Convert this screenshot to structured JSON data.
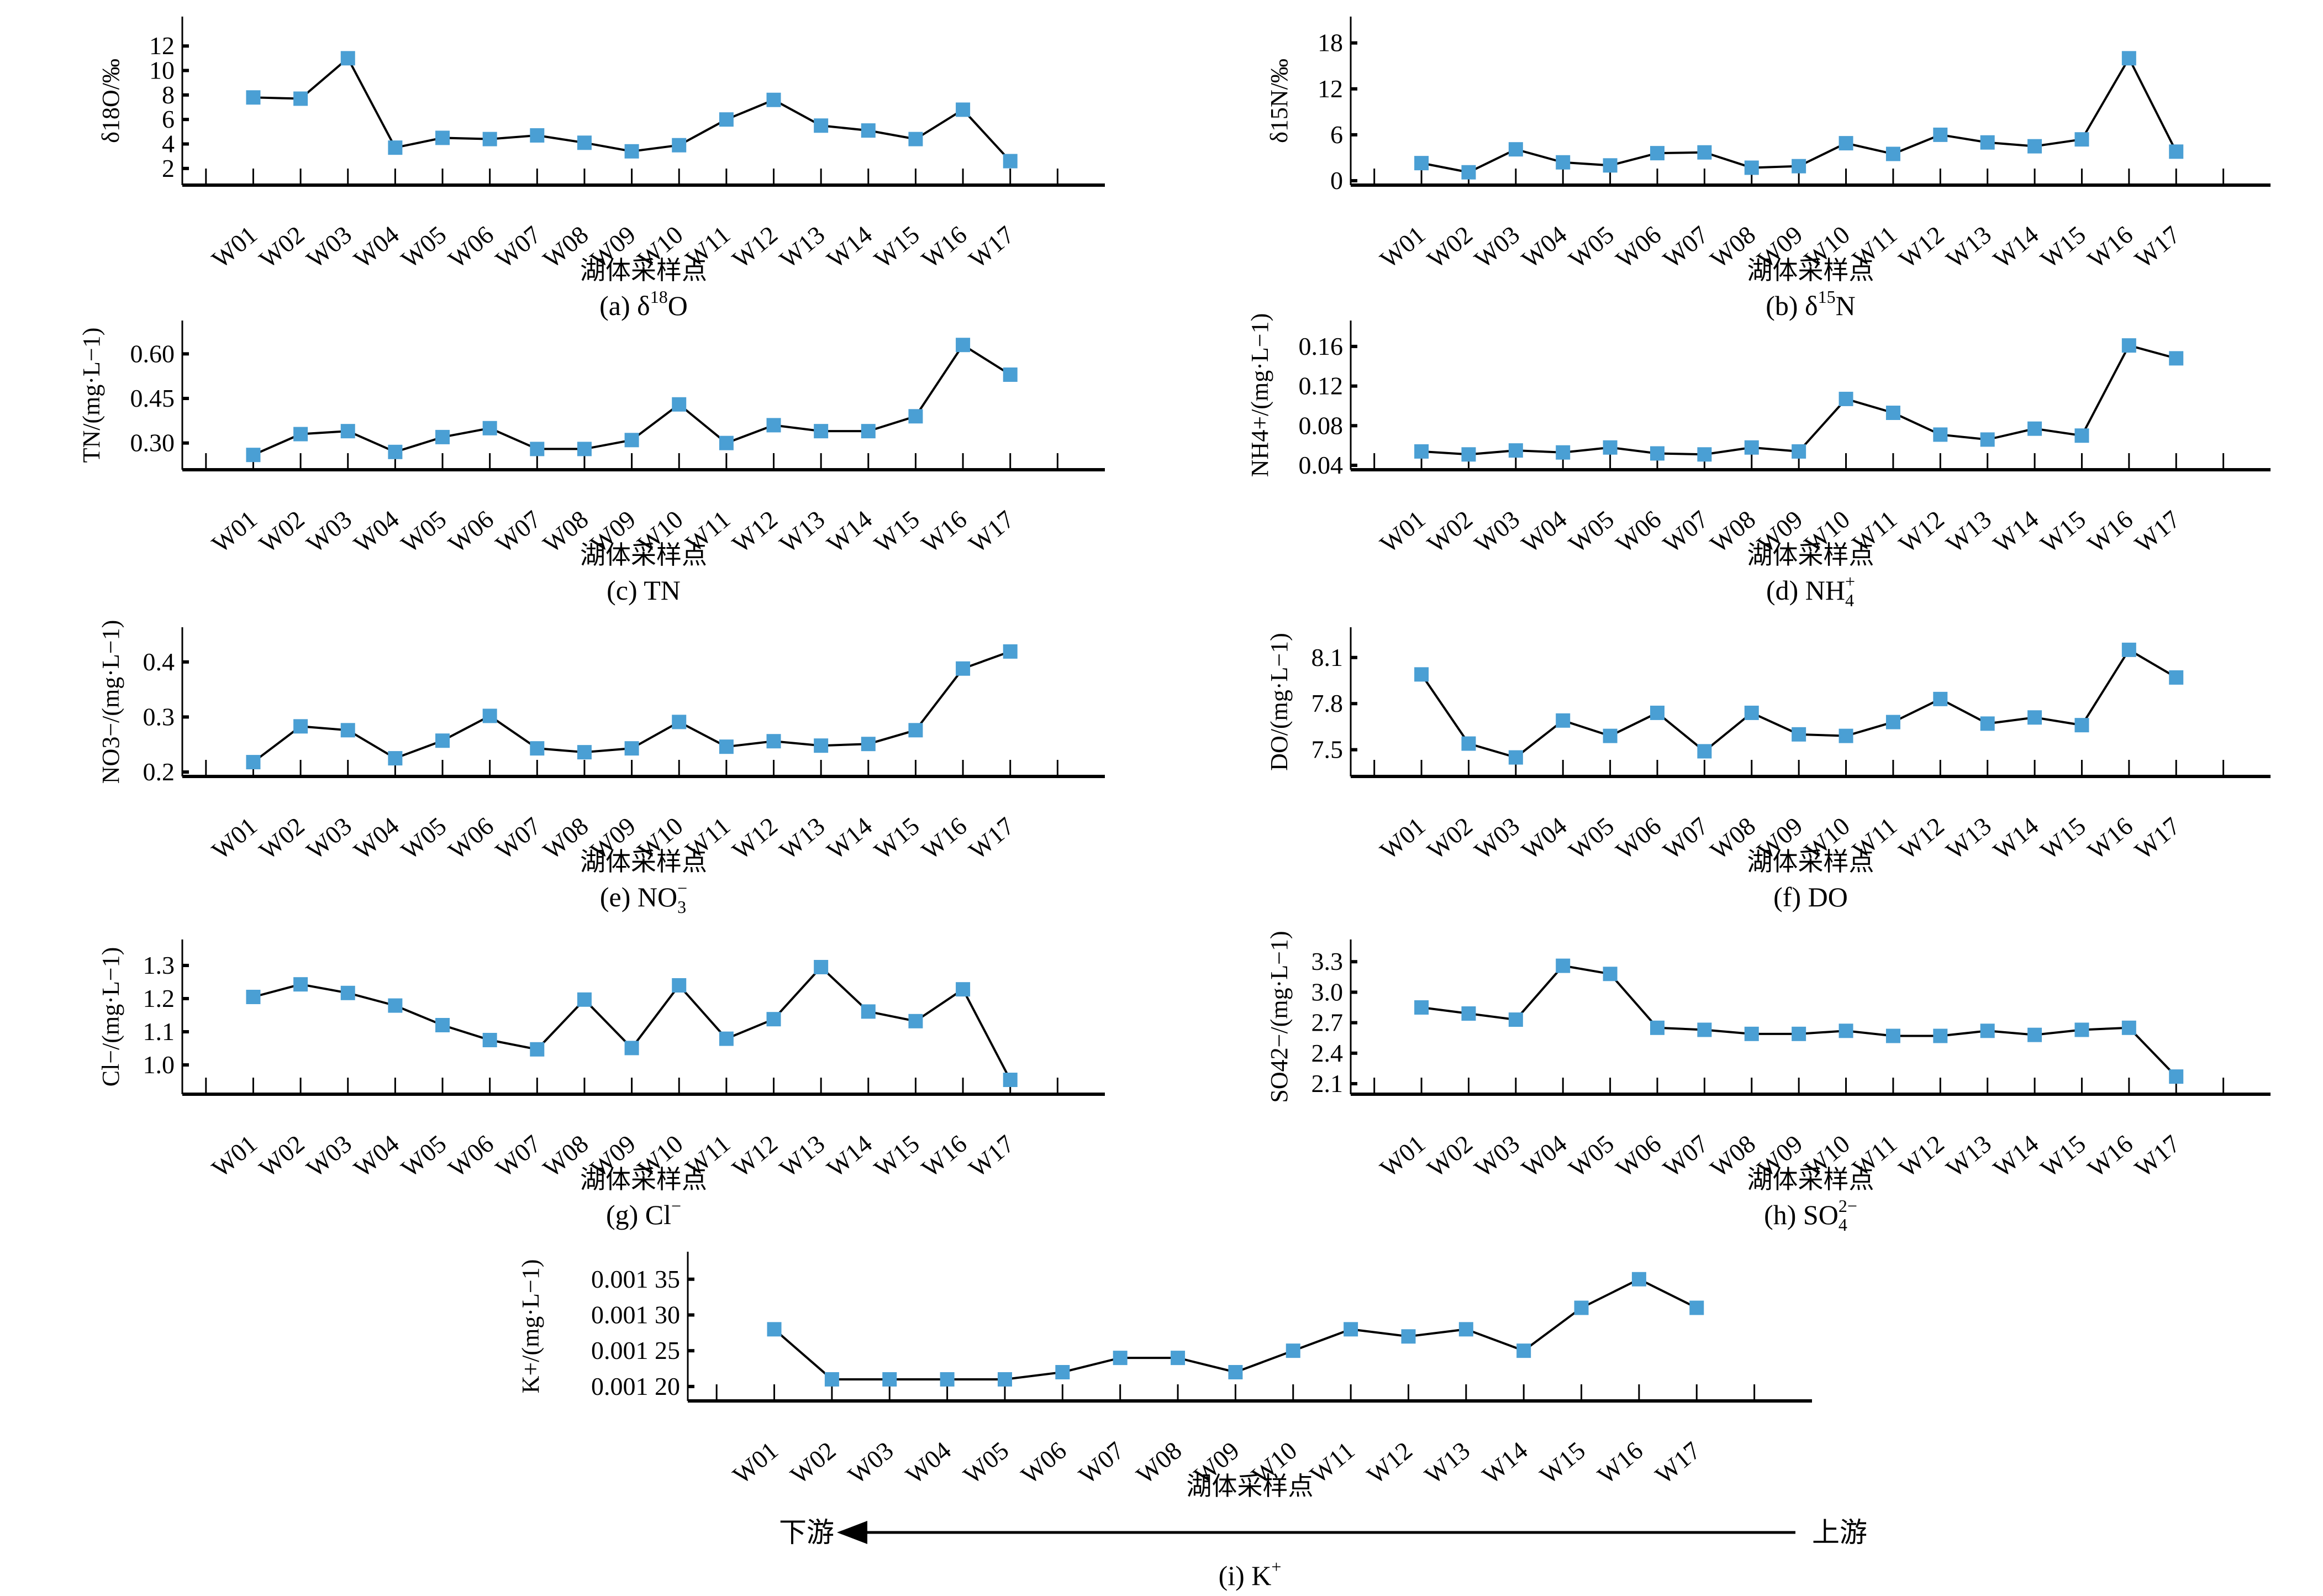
{
  "figure": {
    "xlabel": "湖体采样点",
    "flow": {
      "downstream": "下游",
      "upstream": "上游"
    },
    "marker_color": "#4a9fd4",
    "line_color": "#000000"
  },
  "chart_data": [
    {
      "id": "a",
      "type": "line",
      "caption": "(a) δ18O",
      "caption_parts": {
        "prefix": "(a) δ",
        "sup": "18",
        "suffix": "O"
      },
      "ylabel": "δ18O/‰",
      "xlabel": "湖体采样点",
      "categories": [
        "W01",
        "W02",
        "W03",
        "W04",
        "W05",
        "W06",
        "W07",
        "W08",
        "W09",
        "W10",
        "W11",
        "W12",
        "W13",
        "W14",
        "W15",
        "W16",
        "W17"
      ],
      "values": [
        7.8,
        7.7,
        11.0,
        3.7,
        4.5,
        4.4,
        4.7,
        4.1,
        3.4,
        3.9,
        6.0,
        7.6,
        5.5,
        5.1,
        4.4,
        6.8,
        2.6
      ],
      "yticks": [
        2,
        4,
        6,
        8,
        10,
        12
      ],
      "ytick_labels": [
        "2",
        "4",
        "6",
        "8",
        "10",
        "12"
      ],
      "ylim": [
        1.0,
        13.5
      ]
    },
    {
      "id": "b",
      "type": "line",
      "caption": "(b) δ15N",
      "caption_parts": {
        "prefix": "(b) δ",
        "sup": "15",
        "suffix": "N"
      },
      "ylabel": "δ15N/‰",
      "xlabel": "湖体采样点",
      "categories": [
        "W01",
        "W02",
        "W03",
        "W04",
        "W05",
        "W06",
        "W07",
        "W08",
        "W09",
        "W10",
        "W11",
        "W12",
        "W13",
        "W14",
        "W15",
        "W16",
        "W17"
      ],
      "values": [
        2.3,
        1.1,
        4.1,
        2.4,
        2.0,
        3.6,
        3.7,
        1.7,
        1.9,
        4.9,
        3.5,
        6.0,
        5.0,
        4.5,
        5.4,
        16.0,
        3.8
      ],
      "yticks": [
        0,
        6,
        12,
        18
      ],
      "ytick_labels": [
        "0",
        "6",
        "12",
        "18"
      ],
      "ylim": [
        0,
        20
      ]
    },
    {
      "id": "c",
      "type": "line",
      "caption": "(c) TN",
      "caption_parts": {
        "prefix": "(c) TN",
        "sup": "",
        "suffix": ""
      },
      "ylabel": "TN/(mg·L−1)",
      "xlabel": "湖体采样点",
      "categories": [
        "W01",
        "W02",
        "W03",
        "W04",
        "W05",
        "W06",
        "W07",
        "W08",
        "W09",
        "W10",
        "W11",
        "W12",
        "W13",
        "W14",
        "W15",
        "W16",
        "W17"
      ],
      "values": [
        0.26,
        0.33,
        0.34,
        0.27,
        0.32,
        0.35,
        0.28,
        0.28,
        0.31,
        0.43,
        0.3,
        0.36,
        0.34,
        0.34,
        0.39,
        0.63,
        0.53
      ],
      "yticks": [
        0.3,
        0.45,
        0.6
      ],
      "ytick_labels": [
        "0.30",
        "0.45",
        "0.60"
      ],
      "ylim": [
        0.225,
        0.675
      ]
    },
    {
      "id": "d",
      "type": "line",
      "caption": "(d) NH4+",
      "caption_parts": {
        "prefix": "(d) NH",
        "sup": "+",
        "sub": "4",
        "suffix": ""
      },
      "ylabel": "NH4+/(mg·L−1)",
      "xlabel": "湖体采样点",
      "categories": [
        "W01",
        "W02",
        "W03",
        "W04",
        "W05",
        "W06",
        "W07",
        "W08",
        "W09",
        "W10",
        "W11",
        "W12",
        "W13",
        "W14",
        "W15",
        "W16",
        "W17"
      ],
      "values": [
        0.054,
        0.051,
        0.055,
        0.053,
        0.058,
        0.052,
        0.051,
        0.058,
        0.054,
        0.107,
        0.093,
        0.071,
        0.066,
        0.077,
        0.07,
        0.161,
        0.148
      ],
      "yticks": [
        0.04,
        0.08,
        0.12,
        0.16
      ],
      "ytick_labels": [
        "0.04",
        "0.08",
        "0.12",
        "0.16"
      ],
      "ylim": [
        0.04,
        0.175
      ]
    },
    {
      "id": "e",
      "type": "line",
      "caption": "(e) NO3−",
      "caption_parts": {
        "prefix": "(e) NO",
        "sup": "−",
        "sub": "3",
        "suffix": ""
      },
      "ylabel": "NO3−/(mg·L−1)",
      "xlabel": "湖体采样点",
      "categories": [
        "W01",
        "W02",
        "W03",
        "W04",
        "W05",
        "W06",
        "W07",
        "W08",
        "W09",
        "W10",
        "W11",
        "W12",
        "W13",
        "W14",
        "W15",
        "W16",
        "W17"
      ],
      "values": [
        0.218,
        0.283,
        0.276,
        0.225,
        0.257,
        0.302,
        0.243,
        0.236,
        0.243,
        0.291,
        0.246,
        0.256,
        0.248,
        0.251,
        0.276,
        0.388,
        0.419
      ],
      "yticks": [
        0.2,
        0.3,
        0.4
      ],
      "ytick_labels": [
        "0.2",
        "0.3",
        "0.4"
      ],
      "ylim": [
        0.2,
        0.443
      ]
    },
    {
      "id": "f",
      "type": "line",
      "caption": "(f) DO",
      "caption_parts": {
        "prefix": "(f) DO",
        "sup": "",
        "suffix": ""
      },
      "ylabel": "DO/(mg·L−1)",
      "xlabel": "湖体采样点",
      "categories": [
        "W01",
        "W02",
        "W03",
        "W04",
        "W05",
        "W06",
        "W07",
        "W08",
        "W09",
        "W10",
        "W11",
        "W12",
        "W13",
        "W14",
        "W15",
        "W16",
        "W17"
      ],
      "values": [
        7.99,
        7.54,
        7.45,
        7.69,
        7.59,
        7.74,
        7.49,
        7.74,
        7.6,
        7.59,
        7.68,
        7.83,
        7.67,
        7.71,
        7.66,
        8.15,
        7.97
      ],
      "yticks": [
        7.5,
        7.8,
        8.1
      ],
      "ytick_labels": [
        "7.5",
        "7.8",
        "8.1"
      ],
      "ylim": [
        7.355,
        8.225
      ]
    },
    {
      "id": "g",
      "type": "line",
      "caption": "(g) Cl−",
      "caption_parts": {
        "prefix": "(g) Cl",
        "sup": "−",
        "suffix": ""
      },
      "ylabel": "Cl−/(mg·L−1)",
      "xlabel": "湖体采样点",
      "categories": [
        "W01",
        "W02",
        "W03",
        "W04",
        "W05",
        "W06",
        "W07",
        "W08",
        "W09",
        "W10",
        "W11",
        "W12",
        "W13",
        "W14",
        "W15",
        "W16",
        "W17"
      ],
      "values": [
        1.205,
        1.243,
        1.217,
        1.179,
        1.12,
        1.075,
        1.047,
        1.197,
        1.051,
        1.24,
        1.079,
        1.138,
        1.295,
        1.161,
        1.132,
        1.228,
        0.955
      ],
      "yticks": [
        1.0,
        1.1,
        1.2,
        1.3
      ],
      "ytick_labels": [
        "1.0",
        "1.1",
        "1.2",
        "1.3"
      ],
      "ylim": [
        0.925,
        1.345
      ]
    },
    {
      "id": "h",
      "type": "line",
      "caption": "(h) SO42−",
      "caption_parts": {
        "prefix": "(h) SO",
        "sup": "2−",
        "sub": "4",
        "suffix": ""
      },
      "ylabel": "SO42−/(mg·L−1)",
      "xlabel": "湖体采样点",
      "categories": [
        "W01",
        "W02",
        "W03",
        "W04",
        "W05",
        "W06",
        "W07",
        "W08",
        "W09",
        "W10",
        "W11",
        "W12",
        "W13",
        "W14",
        "W15",
        "W16",
        "W17"
      ],
      "values": [
        2.85,
        2.79,
        2.73,
        3.26,
        3.18,
        2.65,
        2.63,
        2.59,
        2.59,
        2.62,
        2.57,
        2.57,
        2.62,
        2.58,
        2.63,
        2.65,
        2.17
      ],
      "yticks": [
        2.1,
        2.4,
        2.7,
        3.0,
        3.3
      ],
      "ytick_labels": [
        "2.1",
        "2.4",
        "2.7",
        "3.0",
        "3.3"
      ],
      "ylim": [
        2.04,
        3.41
      ]
    },
    {
      "id": "i",
      "type": "line",
      "caption": "(i) K+",
      "caption_parts": {
        "prefix": "(i) K",
        "sup": "+",
        "suffix": ""
      },
      "ylabel": "K+/(mg·L−1)",
      "xlabel": "湖体采样点",
      "categories": [
        "W01",
        "W02",
        "W03",
        "W04",
        "W05",
        "W06",
        "W07",
        "W08",
        "W09",
        "W10",
        "W11",
        "W12",
        "W13",
        "W14",
        "W15",
        "W16",
        "W17"
      ],
      "values": [
        0.00128,
        0.00121,
        0.00121,
        0.00121,
        0.00121,
        0.00122,
        0.00124,
        0.00124,
        0.00122,
        0.00125,
        0.00128,
        0.00127,
        0.00128,
        0.00125,
        0.00131,
        0.00135,
        0.00131
      ],
      "yticks": [
        0.0012,
        0.00125,
        0.0013,
        0.00135
      ],
      "ytick_labels": [
        "0.001 20",
        "0.001 25",
        "0.001 30",
        "0.001 35"
      ],
      "ylim": [
        0.001186,
        0.001373
      ]
    }
  ]
}
